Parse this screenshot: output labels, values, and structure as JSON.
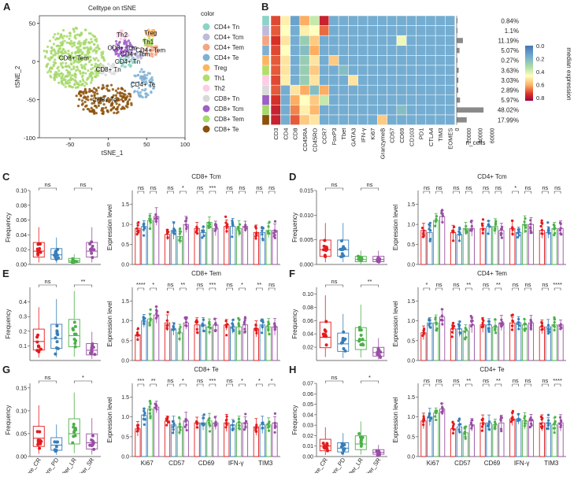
{
  "chart_data": [
    {
      "panel": "A",
      "type": "scatter",
      "title": "Celltype on tSNE",
      "xlabel": "tSNE_1",
      "ylabel": "tSNE_2",
      "xlim": [
        -90,
        100
      ],
      "ylim": [
        -100,
        60
      ],
      "xticks": [
        "-50",
        "0",
        "50",
        "100"
      ],
      "yticks": [
        "50",
        "0",
        "-50",
        "-100"
      ],
      "legend_title": "color",
      "clusters": [
        {
          "name": "CD8+ Tem",
          "color": "#a6d96a",
          "cx": -45,
          "cy": 5,
          "rx": 40,
          "ry": 40,
          "n": 420,
          "label": "CD8+ Tem"
        },
        {
          "name": "CD8+ Te",
          "color": "#8c510a",
          "cx": -5,
          "cy": -50,
          "rx": 38,
          "ry": 20,
          "n": 180,
          "label": "CD8+ Te"
        },
        {
          "name": "CD8+ Tcm",
          "color": "#9e5fc7",
          "cx": 18,
          "cy": 18,
          "rx": 14,
          "ry": 12,
          "n": 60,
          "label": "CD8+ Tcm"
        },
        {
          "name": "CD4+ Tem",
          "color": "#f4a582",
          "cx": 55,
          "cy": 15,
          "rx": 10,
          "ry": 9,
          "n": 35,
          "label": "CD4+ Tem"
        },
        {
          "name": "CD4+ Te",
          "color": "#80b1d3",
          "cx": 45,
          "cy": -30,
          "rx": 15,
          "ry": 20,
          "n": 70,
          "label": "CD4+ Te"
        },
        {
          "name": "CD4+ Tn",
          "color": "#8dd3c7",
          "cx": 25,
          "cy": 0,
          "rx": 12,
          "ry": 8,
          "n": 30,
          "label": "CD4+ Tn"
        },
        {
          "name": "CD8+ Tn",
          "color": "#d9d9d9",
          "cx": 0,
          "cy": -10,
          "rx": 14,
          "ry": 8,
          "n": 30,
          "label": "CD8+ Tn"
        },
        {
          "name": "CD4+ Tcm",
          "color": "#bebada",
          "cx": 35,
          "cy": 10,
          "rx": 12,
          "ry": 8,
          "n": 35,
          "label": "CD4+ Tcm"
        },
        {
          "name": "Treg",
          "color": "#fdb462",
          "cx": 55,
          "cy": 38,
          "rx": 7,
          "ry": 5,
          "n": 25,
          "label": "Treg"
        },
        {
          "name": "Th1",
          "color": "#b3de69",
          "cx": 52,
          "cy": 26,
          "rx": 7,
          "ry": 6,
          "n": 20,
          "label": "Th1"
        },
        {
          "name": "Th2",
          "color": "#fccde5",
          "cx": 18,
          "cy": 35,
          "rx": 9,
          "ry": 6,
          "n": 25,
          "label": "Th2"
        }
      ]
    },
    {
      "panel": "B",
      "type": "heatmap",
      "rows": [
        "CD4+ Tn",
        "CD4+ Tcm",
        "CD4+ Tem",
        "CD4+ Te",
        "Treg",
        "Th1",
        "Th2",
        "CD8+ Tn",
        "CD8+ Tcm",
        "CD8+ Tem",
        "CD8+ Te"
      ],
      "row_colors": [
        "#8dd3c7",
        "#bebada",
        "#f4a582",
        "#80b1d3",
        "#fdb462",
        "#b3de69",
        "#fccde5",
        "#d9d9d9",
        "#9e5fc7",
        "#a6d96a",
        "#8c510a"
      ],
      "columns": [
        "CD3",
        "CD4",
        "CD8",
        "CD45RA",
        "CD45RO",
        "CCR7",
        "FoxP3",
        "Tbet",
        "GATA3",
        "IFN-γ",
        "Ki67",
        "GranzymeB",
        "CD57",
        "CD69",
        "CD103",
        "PD1",
        "CTLA4",
        "TIM3",
        "EOMES"
      ],
      "colorbar_title": "median expression",
      "colorbar_range": [
        0.8,
        0.0
      ],
      "colorbar_ticks": [
        "0.0",
        "0.2",
        "0.4",
        "0.6",
        "0.8"
      ],
      "values": [
        [
          0.72,
          0.48,
          0.12,
          0.6,
          0.35,
          0.78,
          0.15,
          0.15,
          0.15,
          0.15,
          0.15,
          0.15,
          0.15,
          0.15,
          0.15,
          0.15,
          0.15,
          0.15,
          0.15
        ],
        [
          0.7,
          0.45,
          0.15,
          0.48,
          0.45,
          0.68,
          0.15,
          0.15,
          0.15,
          0.15,
          0.15,
          0.15,
          0.15,
          0.15,
          0.15,
          0.15,
          0.15,
          0.15,
          0.15
        ],
        [
          0.75,
          0.5,
          0.15,
          0.25,
          0.55,
          0.15,
          0.15,
          0.15,
          0.15,
          0.15,
          0.15,
          0.15,
          0.15,
          0.42,
          0.15,
          0.15,
          0.15,
          0.15,
          0.15
        ],
        [
          0.72,
          0.45,
          0.15,
          0.2,
          0.6,
          0.15,
          0.15,
          0.15,
          0.15,
          0.15,
          0.15,
          0.15,
          0.15,
          0.15,
          0.15,
          0.15,
          0.15,
          0.15,
          0.15
        ],
        [
          0.7,
          0.5,
          0.15,
          0.25,
          0.5,
          0.15,
          0.55,
          0.15,
          0.15,
          0.15,
          0.15,
          0.15,
          0.15,
          0.15,
          0.15,
          0.15,
          0.15,
          0.15,
          0.15
        ],
        [
          0.7,
          0.5,
          0.15,
          0.25,
          0.55,
          0.15,
          0.15,
          0.2,
          0.15,
          0.15,
          0.15,
          0.15,
          0.15,
          0.15,
          0.15,
          0.15,
          0.15,
          0.15,
          0.15
        ],
        [
          0.72,
          0.48,
          0.15,
          0.25,
          0.5,
          0.15,
          0.15,
          0.15,
          0.5,
          0.15,
          0.15,
          0.15,
          0.15,
          0.15,
          0.15,
          0.15,
          0.15,
          0.15,
          0.15
        ],
        [
          0.7,
          0.15,
          0.5,
          0.6,
          0.2,
          0.6,
          0.15,
          0.15,
          0.15,
          0.15,
          0.15,
          0.15,
          0.15,
          0.15,
          0.15,
          0.15,
          0.15,
          0.15,
          0.15
        ],
        [
          0.75,
          0.15,
          0.6,
          0.45,
          0.55,
          0.35,
          0.15,
          0.15,
          0.15,
          0.15,
          0.15,
          0.15,
          0.15,
          0.15,
          0.15,
          0.15,
          0.15,
          0.15,
          0.15
        ],
        [
          0.78,
          0.15,
          0.65,
          0.48,
          0.58,
          0.15,
          0.15,
          0.15,
          0.15,
          0.15,
          0.15,
          0.15,
          0.15,
          0.2,
          0.15,
          0.15,
          0.15,
          0.15,
          0.15
        ],
        [
          0.78,
          0.15,
          0.7,
          0.55,
          0.5,
          0.15,
          0.15,
          0.15,
          0.15,
          0.15,
          0.15,
          0.55,
          0.15,
          0.15,
          0.15,
          0.15,
          0.15,
          0.15,
          0.15
        ]
      ],
      "bar_label": "n_cells",
      "bar_ticks": [
        "0",
        "20000",
        "40000",
        "60000"
      ],
      "bar_max": 65000,
      "n_cells": [
        810,
        1060,
        10760,
        4880,
        260,
        3490,
        2920,
        2780,
        5740,
        46190,
        17310
      ],
      "percentages": [
        "0.84%",
        "1.1%",
        "11.19%",
        "5.07%",
        "0.27%",
        "3.63%",
        "3.03%",
        "2.89%",
        "5.97%",
        "48.02%",
        "17.99%"
      ]
    },
    {
      "type": "box_grid",
      "groups": [
        "Before_CR",
        "Before_PD",
        "After_LR",
        "After_SR"
      ],
      "group_colors": [
        "#e41a1c",
        "#377eb8",
        "#4daf4a",
        "#984ea3"
      ],
      "markers": [
        "Ki67",
        "CD57",
        "CD69",
        "IFN-γ",
        "TIM3"
      ],
      "freq_ylabel": "Frequency",
      "expr_ylabel": "Expression level",
      "panels": [
        {
          "letter": "C",
          "title": "CD8+ Tcm",
          "freq_max": 0.1,
          "freq_ticks": [
            "0.00",
            "0.02",
            "0.04",
            "0.06",
            "0.08",
            "0.10"
          ],
          "freq_medians": [
            0.018,
            0.013,
            0.005,
            0.018
          ],
          "freq_sig": [
            "ns",
            "ns"
          ],
          "expr_means": [
            [
              0.9,
              0.95,
              1.1,
              1.2
            ],
            [
              0.75,
              0.85,
              0.7,
              1.0
            ],
            [
              0.9,
              0.8,
              1.05,
              0.9
            ],
            [
              0.95,
              0.95,
              0.9,
              0.95
            ],
            [
              0.8,
              0.8,
              0.85,
              0.85
            ]
          ],
          "expr_sig": [
            [
              "ns",
              "ns"
            ],
            [
              "ns",
              "*"
            ],
            [
              "ns",
              "***"
            ],
            [
              "ns",
              "ns"
            ],
            [
              "ns",
              "ns"
            ]
          ]
        },
        {
          "letter": "D",
          "title": "CD4+ Tcm",
          "freq_max": 0.015,
          "freq_ticks": [
            "0.000",
            "0.005",
            "0.010",
            "0.015"
          ],
          "freq_medians": [
            0.003,
            0.003,
            0.001,
            0.001
          ],
          "freq_sig": [
            "ns",
            "ns"
          ],
          "expr_means": [
            [
              0.85,
              0.8,
              1.1,
              1.2
            ],
            [
              0.8,
              0.75,
              0.9,
              0.9
            ],
            [
              0.9,
              0.95,
              0.95,
              0.85
            ],
            [
              0.9,
              0.8,
              1.0,
              1.0
            ],
            [
              0.85,
              0.8,
              0.9,
              0.9
            ]
          ],
          "expr_sig": [
            [
              "ns",
              "ns"
            ],
            [
              "ns",
              "ns"
            ],
            [
              "ns",
              "ns"
            ],
            [
              "*",
              "ns"
            ],
            [
              "ns",
              "ns"
            ]
          ]
        },
        {
          "letter": "E",
          "title": "CD8+ Tem",
          "freq_max": 0.5,
          "freq_ticks": [
            "0.1",
            "0.2",
            "0.3",
            "0.4"
          ],
          "freq_medians": [
            0.13,
            0.15,
            0.17,
            0.07
          ],
          "freq_sig": [
            "ns",
            "**"
          ],
          "expr_means": [
            [
              0.65,
              1.0,
              1.05,
              1.15
            ],
            [
              0.95,
              0.8,
              0.7,
              0.95
            ],
            [
              0.9,
              0.9,
              0.85,
              0.9
            ],
            [
              0.9,
              0.85,
              0.85,
              0.9
            ],
            [
              0.8,
              0.9,
              0.85,
              0.85
            ]
          ],
          "expr_sig": [
            [
              "****",
              "*"
            ],
            [
              "ns",
              "**"
            ],
            [
              "ns",
              "***"
            ],
            [
              "ns",
              "*"
            ],
            [
              "**",
              "ns"
            ]
          ]
        },
        {
          "letter": "F",
          "title": "CD4+ Tem",
          "freq_max": 0.11,
          "freq_ticks": [
            "0.02",
            "0.04",
            "0.06",
            "0.08",
            "0.10"
          ],
          "freq_medians": [
            0.035,
            0.025,
            0.03,
            0.012
          ],
          "freq_sig": [
            "ns",
            "**"
          ],
          "expr_means": [
            [
              0.7,
              0.95,
              0.95,
              1.1
            ],
            [
              0.8,
              0.8,
              0.75,
              0.9
            ],
            [
              0.9,
              0.9,
              0.85,
              0.95
            ],
            [
              0.95,
              0.95,
              0.9,
              0.95
            ],
            [
              0.85,
              0.85,
              0.9,
              0.9
            ]
          ],
          "expr_sig": [
            [
              "*",
              "ns"
            ],
            [
              "ns",
              "**"
            ],
            [
              "ns",
              "**"
            ],
            [
              "ns",
              "ns"
            ],
            [
              "ns",
              "****"
            ]
          ]
        },
        {
          "letter": "G",
          "title": "CD8+ Te",
          "freq_max": 0.16,
          "freq_ticks": [
            "0.00",
            "0.05",
            "0.10",
            "0.15"
          ],
          "freq_medians": [
            0.04,
            0.025,
            0.05,
            0.03
          ],
          "freq_sig": [
            "ns",
            "*"
          ],
          "expr_means": [
            [
              0.7,
              1.05,
              1.2,
              1.25
            ],
            [
              0.9,
              0.8,
              0.75,
              0.9
            ],
            [
              0.85,
              0.85,
              0.9,
              0.85
            ],
            [
              0.85,
              0.8,
              0.85,
              0.85
            ],
            [
              0.75,
              0.8,
              0.8,
              0.85
            ]
          ],
          "expr_sig": [
            [
              "***",
              "**"
            ],
            [
              "ns",
              "*"
            ],
            [
              "ns",
              "***"
            ],
            [
              "ns",
              "*"
            ],
            [
              "*",
              "*"
            ]
          ]
        },
        {
          "letter": "H",
          "title": "CD4+ Te",
          "freq_max": 0.07,
          "freq_ticks": [
            "0.00",
            "0.01",
            "0.02",
            "0.03",
            "0.04",
            "0.05",
            "0.06",
            "0.07"
          ],
          "freq_medians": [
            0.01,
            0.008,
            0.012,
            0.004
          ],
          "freq_sig": [
            "ns",
            "*"
          ],
          "expr_means": [
            [
              0.9,
              1.0,
              1.1,
              1.2
            ],
            [
              0.7,
              0.75,
              0.6,
              0.8
            ],
            [
              0.85,
              0.85,
              0.8,
              0.85
            ],
            [
              0.95,
              0.95,
              0.9,
              0.9
            ],
            [
              0.85,
              0.85,
              0.8,
              0.85
            ]
          ],
          "expr_sig": [
            [
              "ns",
              "ns"
            ],
            [
              "ns",
              "**"
            ],
            [
              "ns",
              "**"
            ],
            [
              "ns",
              "ns"
            ],
            [
              "ns",
              "****"
            ]
          ]
        }
      ]
    }
  ]
}
